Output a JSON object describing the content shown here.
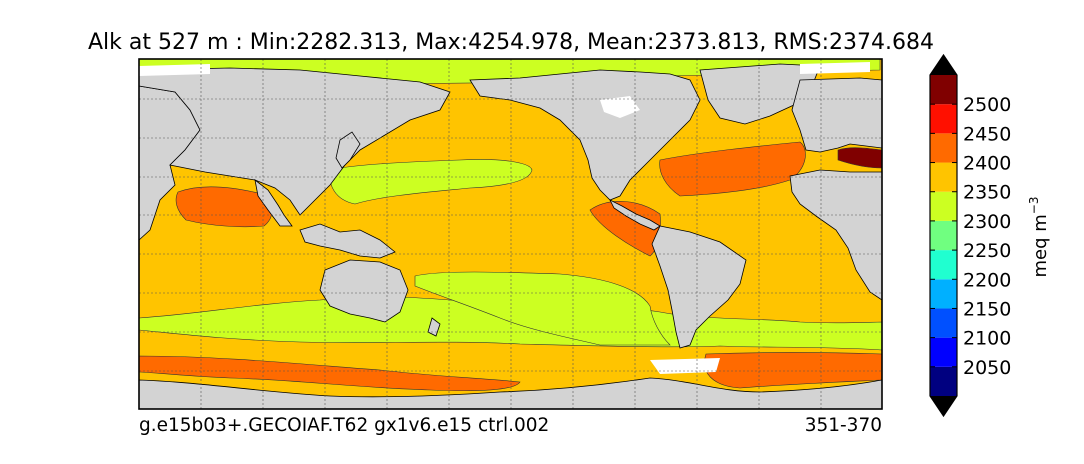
{
  "figure": {
    "title": "Alk at 527 m : Min:2282.313, Max:4254.978, Mean:2373.813, RMS:2374.684",
    "footer_left": "g.e15b03+.GECOIAF.T62 gx1v6.e15 ctrl.002",
    "footer_right": "351-370"
  },
  "chart_data": {
    "type": "heatmap",
    "title": "Alk at 527 m : Min:2282.313, Max:4254.978, Mean:2373.813, RMS:2374.684",
    "variable": "Alk",
    "depth": "527 m",
    "stats": {
      "min": 2282.313,
      "max": 4254.978,
      "mean": 2373.813,
      "rms": 2374.684
    },
    "projection": "global cylindrical map, Pacific-centred",
    "grid": true,
    "colorbar": {
      "label": "meq m",
      "label_superscript": "−3",
      "placement": "right",
      "extend": "both",
      "boundaries": [
        2000,
        2050,
        2100,
        2150,
        2200,
        2250,
        2300,
        2350,
        2400,
        2450,
        2500,
        2550
      ],
      "tick_labels": [
        "2050",
        "2100",
        "2150",
        "2200",
        "2250",
        "2300",
        "2350",
        "2400",
        "2450",
        "2500"
      ],
      "colors": [
        "#000080",
        "#0000ff",
        "#0050ff",
        "#00b0ff",
        "#20ffd0",
        "#70ff80",
        "#ccff22",
        "#ffc400",
        "#ff6a00",
        "#ff1000",
        "#800000"
      ],
      "under_color": "#000000",
      "over_color": "#000000"
    },
    "land_color": "#d3d3d3",
    "missing_color": "#ffffff"
  }
}
